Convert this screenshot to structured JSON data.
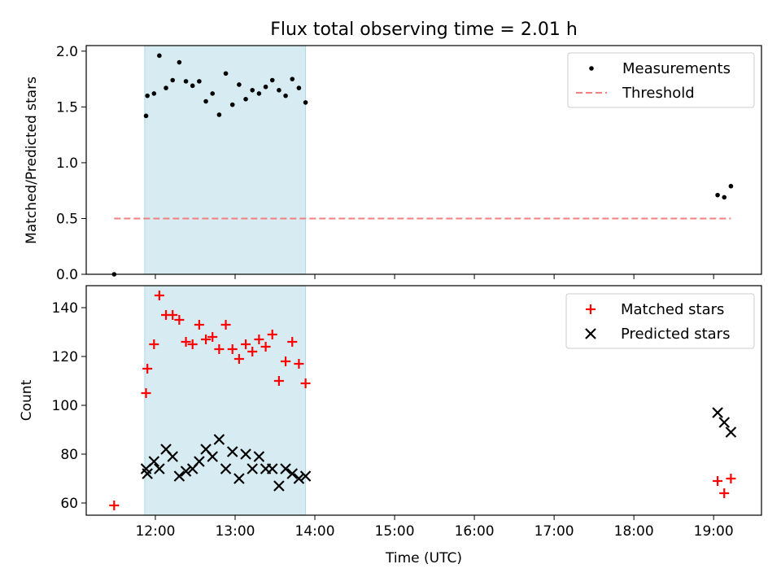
{
  "chart_data": {
    "title": "Flux total observing time = 2.01 h",
    "xlabel": "Time (UTC)",
    "x_unit": "hours UTC",
    "xlim": [
      "11:08",
      "19:36"
    ],
    "xticks": [
      "12:00",
      "13:00",
      "14:00",
      "15:00",
      "16:00",
      "17:00",
      "18:00",
      "19:00"
    ],
    "grid": false,
    "highlight_span": {
      "start": "11:52",
      "end": "13:53",
      "color": "#add8e6"
    },
    "panels": [
      {
        "type": "scatter",
        "ylabel": "Matched/Predicted stars",
        "ylim": [
          0.0,
          2.05
        ],
        "yticks": [
          "0.0",
          "0.5",
          "1.0",
          "1.5",
          "2.0"
        ],
        "legend_position": "top-right",
        "series": [
          {
            "name": "Measurements",
            "marker": "dot",
            "color": "#000000",
            "points": [
              [
                "11:29",
                0.0
              ],
              [
                "11:53",
                1.42
              ],
              [
                "11:54",
                1.6
              ],
              [
                "11:59",
                1.62
              ],
              [
                "12:03",
                1.96
              ],
              [
                "12:08",
                1.67
              ],
              [
                "12:13",
                1.74
              ],
              [
                "12:18",
                1.9
              ],
              [
                "12:23",
                1.73
              ],
              [
                "12:28",
                1.69
              ],
              [
                "12:33",
                1.73
              ],
              [
                "12:38",
                1.55
              ],
              [
                "12:43",
                1.62
              ],
              [
                "12:48",
                1.43
              ],
              [
                "12:53",
                1.8
              ],
              [
                "12:58",
                1.52
              ],
              [
                "13:03",
                1.7
              ],
              [
                "13:08",
                1.57
              ],
              [
                "13:13",
                1.65
              ],
              [
                "13:18",
                1.62
              ],
              [
                "13:23",
                1.68
              ],
              [
                "13:28",
                1.74
              ],
              [
                "13:33",
                1.65
              ],
              [
                "13:38",
                1.6
              ],
              [
                "13:43",
                1.75
              ],
              [
                "13:48",
                1.67
              ],
              [
                "13:53",
                1.54
              ],
              [
                "19:03",
                0.71
              ],
              [
                "19:08",
                0.69
              ],
              [
                "19:13",
                0.79
              ]
            ]
          },
          {
            "name": "Threshold",
            "marker": "dashed-line",
            "color": "#f08080",
            "points": [
              [
                "11:29",
                0.5
              ],
              [
                "19:13",
                0.5
              ]
            ]
          }
        ]
      },
      {
        "type": "scatter",
        "ylabel": "Count",
        "ylim": [
          55,
          149
        ],
        "yticks": [
          "60",
          "80",
          "100",
          "120",
          "140"
        ],
        "legend_position": "top-right",
        "series": [
          {
            "name": "Matched stars",
            "marker": "plus",
            "color": "#ff0000",
            "points": [
              [
                "11:29",
                59
              ],
              [
                "11:53",
                105
              ],
              [
                "11:54",
                115
              ],
              [
                "11:59",
                125
              ],
              [
                "12:03",
                145
              ],
              [
                "12:08",
                137
              ],
              [
                "12:13",
                137
              ],
              [
                "12:18",
                135
              ],
              [
                "12:23",
                126
              ],
              [
                "12:28",
                125
              ],
              [
                "12:33",
                133
              ],
              [
                "12:38",
                127
              ],
              [
                "12:43",
                128
              ],
              [
                "12:48",
                123
              ],
              [
                "12:53",
                133
              ],
              [
                "12:58",
                123
              ],
              [
                "13:03",
                119
              ],
              [
                "13:08",
                125
              ],
              [
                "13:13",
                122
              ],
              [
                "13:18",
                127
              ],
              [
                "13:23",
                124
              ],
              [
                "13:28",
                129
              ],
              [
                "13:33",
                110
              ],
              [
                "13:38",
                118
              ],
              [
                "13:43",
                126
              ],
              [
                "13:48",
                117
              ],
              [
                "13:53",
                109
              ],
              [
                "19:03",
                69
              ],
              [
                "19:08",
                64
              ],
              [
                "19:13",
                70
              ]
            ]
          },
          {
            "name": "Predicted stars",
            "marker": "x",
            "color": "#000000",
            "points": [
              [
                "11:53",
                74
              ],
              [
                "11:54",
                72
              ],
              [
                "11:59",
                77
              ],
              [
                "12:03",
                74
              ],
              [
                "12:08",
                82
              ],
              [
                "12:13",
                79
              ],
              [
                "12:18",
                71
              ],
              [
                "12:23",
                73
              ],
              [
                "12:28",
                74
              ],
              [
                "12:33",
                77
              ],
              [
                "12:38",
                82
              ],
              [
                "12:43",
                79
              ],
              [
                "12:48",
                86
              ],
              [
                "12:53",
                74
              ],
              [
                "12:58",
                81
              ],
              [
                "13:03",
                70
              ],
              [
                "13:08",
                80
              ],
              [
                "13:13",
                74
              ],
              [
                "13:18",
                79
              ],
              [
                "13:23",
                74
              ],
              [
                "13:28",
                74
              ],
              [
                "13:33",
                67
              ],
              [
                "13:38",
                74
              ],
              [
                "13:43",
                72
              ],
              [
                "13:48",
                70
              ],
              [
                "13:53",
                71
              ],
              [
                "19:03",
                97
              ],
              [
                "19:08",
                93
              ],
              [
                "19:13",
                89
              ]
            ]
          }
        ]
      }
    ]
  }
}
